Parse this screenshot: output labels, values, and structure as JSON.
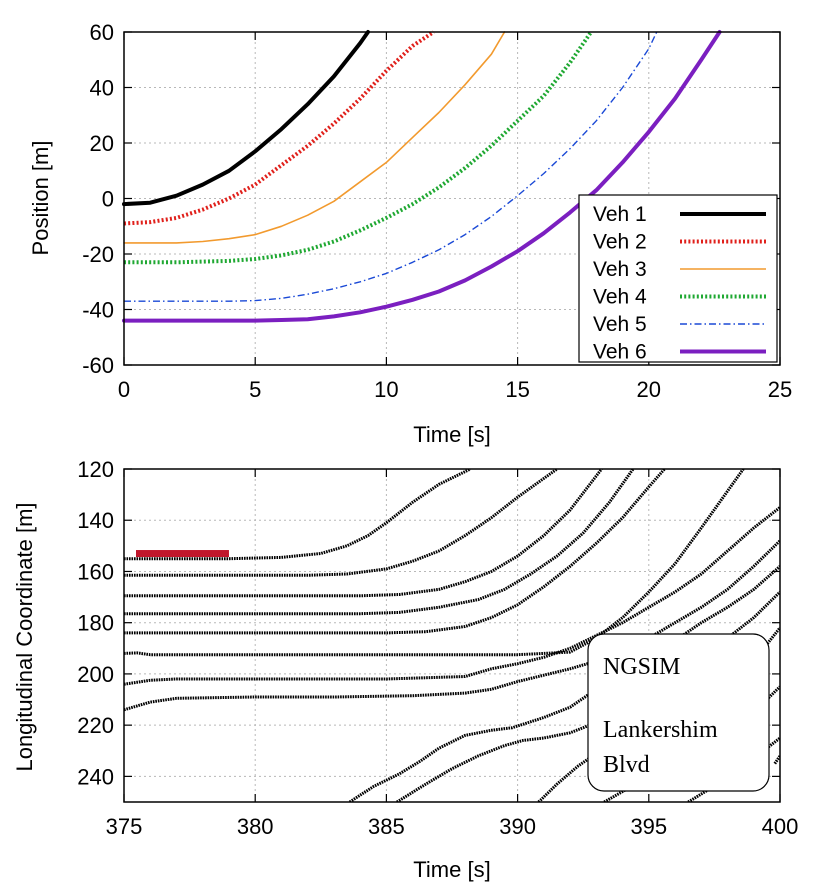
{
  "chart_data": [
    {
      "type": "line",
      "xlabel": "Time [s]",
      "ylabel": "Position [m]",
      "xlim": [
        0,
        25
      ],
      "ylim": [
        -60,
        60
      ],
      "xticks": [
        "0",
        "5",
        "10",
        "15",
        "20",
        "25"
      ],
      "yticks": [
        "60",
        "40",
        "20",
        "0",
        "-20",
        "-40",
        "-60"
      ],
      "grid": true,
      "legend_position": "bottom-right",
      "series": [
        {
          "name": "Veh 1",
          "color": "#000000",
          "style": "solid-thick",
          "x": [
            0,
            1,
            2,
            3,
            4,
            5,
            6,
            7,
            8,
            9,
            9.3
          ],
          "y": [
            -2,
            -1.5,
            1,
            5,
            10,
            17,
            25,
            34,
            44,
            56,
            60
          ]
        },
        {
          "name": "Veh 2",
          "color": "#e0201b",
          "style": "dotted",
          "x": [
            0,
            1,
            2,
            3,
            4,
            5,
            6,
            7,
            8,
            9,
            10,
            11,
            11.8
          ],
          "y": [
            -9,
            -8.5,
            -7,
            -4,
            0,
            5,
            12,
            19,
            27,
            36,
            46,
            55,
            60
          ]
        },
        {
          "name": "Veh 3",
          "color": "#f29a2e",
          "style": "solid-thin",
          "x": [
            0,
            1,
            2,
            3,
            4,
            5,
            6,
            7,
            8,
            9,
            10,
            11,
            12,
            13,
            14,
            14.5
          ],
          "y": [
            -16,
            -16,
            -16,
            -15.5,
            -14.5,
            -13,
            -10,
            -6,
            -1,
            6,
            13,
            22,
            31,
            41,
            52,
            60
          ]
        },
        {
          "name": "Veh 4",
          "color": "#1fa832",
          "style": "dotted",
          "x": [
            0,
            2,
            4,
            5,
            6,
            7,
            8,
            9,
            10,
            11,
            12,
            13,
            14,
            15,
            16,
            17,
            17.8
          ],
          "y": [
            -23,
            -23,
            -22.5,
            -21.8,
            -20.5,
            -18.5,
            -15.5,
            -11.5,
            -7,
            -2,
            4,
            11,
            19,
            28,
            37,
            49,
            60
          ]
        },
        {
          "name": "Veh 5",
          "color": "#1a49d6",
          "style": "dashdot",
          "x": [
            0,
            2,
            4,
            5,
            6,
            7,
            8,
            9,
            10,
            11,
            12,
            13,
            14,
            15,
            16,
            17,
            18,
            19,
            20,
            20.3
          ],
          "y": [
            -37,
            -37,
            -37,
            -36.8,
            -36,
            -34.5,
            -32.5,
            -30,
            -27,
            -23,
            -18.5,
            -13,
            -6.5,
            1,
            9,
            18,
            28,
            40,
            54,
            60
          ]
        },
        {
          "name": "Veh 6",
          "color": "#7b1fc0",
          "style": "solid-thick",
          "x": [
            0,
            3,
            5,
            6,
            7,
            8,
            9,
            10,
            11,
            12,
            13,
            14,
            15,
            16,
            17,
            18,
            19,
            20,
            21,
            22,
            22.7
          ],
          "y": [
            -44,
            -44,
            -44,
            -43.8,
            -43.5,
            -42.5,
            -41,
            -39,
            -36.5,
            -33.5,
            -29.5,
            -24.5,
            -19,
            -12.5,
            -5,
            3,
            13,
            24,
            36,
            50,
            60
          ]
        }
      ]
    },
    {
      "type": "scatter",
      "xlabel": "Time [s]",
      "ylabel": "Longitudinal Coordinate [m]",
      "xlim": [
        375,
        400
      ],
      "ylim": [
        120,
        250
      ],
      "yaxis_inverted": true,
      "xticks": [
        "375",
        "380",
        "385",
        "390",
        "395",
        "400"
      ],
      "yticks": [
        "120",
        "140",
        "160",
        "180",
        "200",
        "220",
        "240"
      ],
      "grid": true,
      "annotation_lines": [
        "NGSIM",
        "Lankershim",
        "Blvd"
      ],
      "marker_bar": {
        "x": [
          375,
          379
        ],
        "y": 153,
        "color": "#c0162c"
      },
      "trajectories": [
        {
          "x": [
            375,
            379,
            381,
            382.5,
            383.5,
            384.3,
            385,
            386,
            387,
            388.2
          ],
          "y": [
            155,
            155,
            154.5,
            153,
            150,
            146,
            141,
            133,
            126,
            120
          ]
        },
        {
          "x": [
            375,
            379,
            382,
            383.5,
            385,
            386,
            387,
            388,
            389,
            390,
            391.5
          ],
          "y": [
            161.5,
            161.5,
            161.5,
            161,
            159,
            156,
            152,
            146,
            139,
            131,
            120
          ]
        },
        {
          "x": [
            375,
            380,
            384,
            385.5,
            387,
            388,
            389,
            390,
            391,
            392,
            393.2
          ],
          "y": [
            169.5,
            169.5,
            169.5,
            169,
            167,
            164,
            160,
            154,
            146,
            136,
            120
          ]
        },
        {
          "x": [
            375,
            380,
            384,
            385.5,
            387,
            388.5,
            389.5,
            390.5,
            391.5,
            392.5,
            393.5,
            394.4
          ],
          "y": [
            176.5,
            176.5,
            176.5,
            176,
            174,
            171,
            167,
            161,
            154,
            145,
            133,
            120
          ]
        },
        {
          "x": [
            375,
            380,
            385,
            386.5,
            388,
            389,
            390,
            391,
            392,
            393,
            394,
            395,
            395.6
          ],
          "y": [
            184,
            184,
            184,
            183.5,
            181.5,
            178,
            173,
            166,
            158,
            149,
            139,
            127,
            120
          ]
        },
        {
          "x": [
            375,
            375.5,
            376,
            377,
            380,
            385,
            390,
            392,
            393,
            394,
            395,
            396,
            397,
            398.6
          ],
          "y": [
            192,
            191.8,
            192.5,
            192.5,
            192.5,
            192.5,
            192.5,
            191.5,
            186,
            178,
            168,
            157,
            143,
            120
          ]
        },
        {
          "x": [
            375,
            376,
            377,
            380,
            385,
            388,
            389,
            390,
            391,
            392,
            393,
            394,
            395,
            396,
            397,
            398,
            399,
            400
          ],
          "y": [
            204,
            202.5,
            202,
            202,
            202,
            201,
            198,
            196,
            193.5,
            190,
            185,
            180,
            174,
            168,
            161,
            152,
            143,
            135
          ]
        },
        {
          "x": [
            375,
            376,
            377,
            380,
            383,
            386,
            388,
            389,
            390,
            391,
            392,
            393,
            394,
            395,
            396,
            397,
            398,
            399,
            400
          ],
          "y": [
            214,
            211,
            209.5,
            209,
            209,
            208.5,
            207.5,
            206,
            203,
            200.5,
            198,
            195,
            191,
            186,
            180,
            174,
            167,
            158,
            148
          ]
        },
        {
          "x": [
            383.6,
            384.5,
            385.5,
            386.3,
            387,
            388,
            389,
            389.8,
            391,
            392,
            393,
            394,
            395,
            396,
            397,
            398,
            399,
            400
          ],
          "y": [
            250,
            244,
            239,
            234,
            229,
            224,
            222,
            221,
            217,
            213,
            206,
            199,
            193,
            187,
            180,
            174,
            167,
            158
          ]
        },
        {
          "x": [
            385.4,
            386.5,
            387.5,
            388.5,
            389.5,
            390.2,
            391,
            392,
            393,
            394,
            395,
            396,
            397,
            398,
            399,
            400
          ],
          "y": [
            250,
            243,
            237,
            232,
            228,
            226,
            225,
            223,
            219,
            213,
            207,
            200,
            193,
            186,
            178,
            168
          ]
        },
        {
          "x": [
            390.8,
            391.5,
            392.3,
            393,
            393.8,
            394.5,
            395.5,
            396.5,
            397.5,
            398.5,
            399.3,
            400
          ],
          "y": [
            250,
            243,
            236,
            231,
            228,
            226,
            222,
            215,
            208,
            200,
            191,
            182
          ]
        },
        {
          "x": [
            393.3,
            394.5,
            395.5,
            396.5,
            397.5,
            398.5,
            399.3,
            400
          ],
          "y": [
            250,
            243,
            237,
            230,
            224,
            218,
            212,
            205
          ]
        },
        {
          "x": [
            396.5,
            397.3,
            398,
            398.8,
            399.5,
            400
          ],
          "y": [
            250,
            245,
            240,
            235,
            229,
            225
          ]
        },
        {
          "x": [
            399.8,
            400
          ],
          "y": [
            235,
            232
          ]
        }
      ]
    }
  ]
}
